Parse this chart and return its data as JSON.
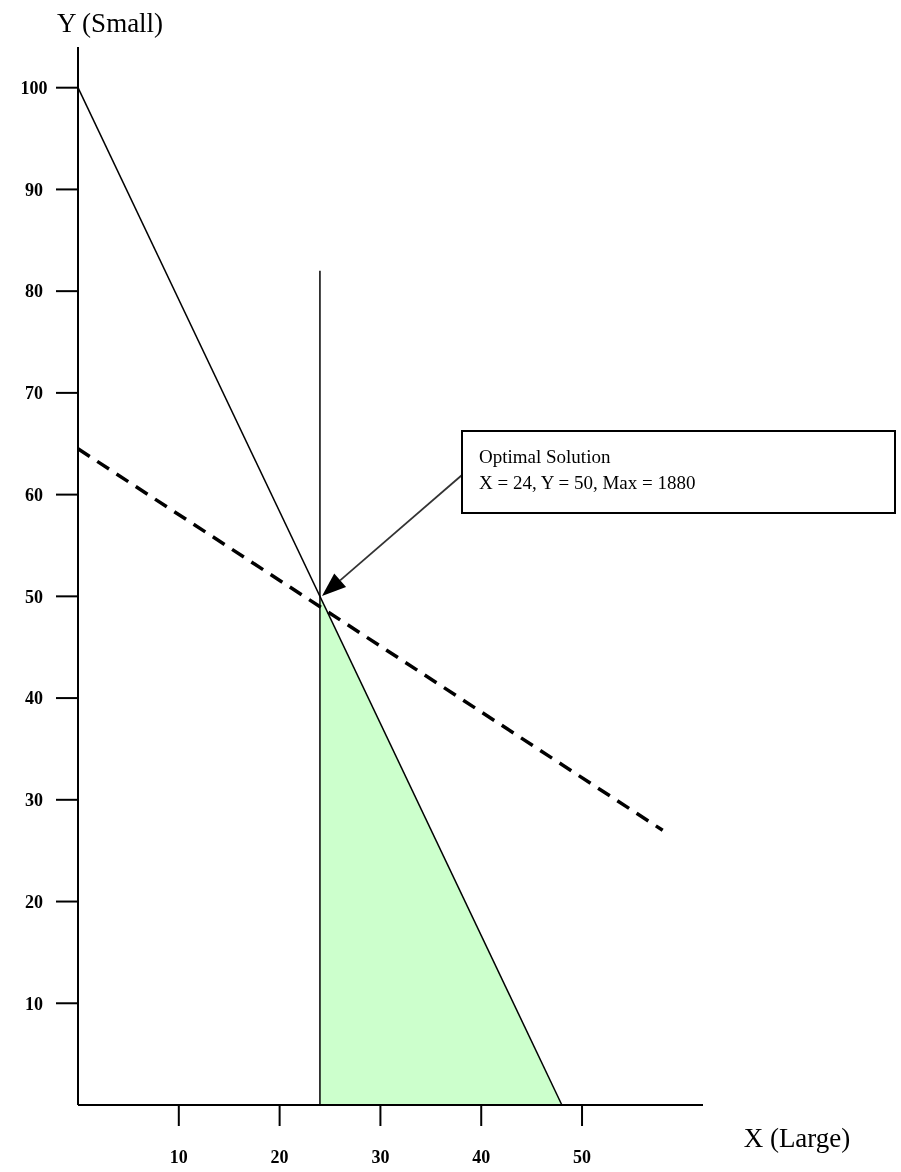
{
  "chart_data": {
    "type": "line",
    "xlabel": "X (Large)",
    "ylabel": "Y (Small)",
    "xlim": [
      0,
      62
    ],
    "ylim": [
      0,
      104
    ],
    "xticks": [
      10,
      20,
      30,
      40,
      50
    ],
    "yticks": [
      10,
      20,
      30,
      40,
      50,
      60,
      70,
      80,
      90,
      100
    ],
    "grid": false,
    "marker": "none",
    "series": [
      {
        "type": "area",
        "color": "#ccffcc",
        "x": [
          24,
          48
        ],
        "values": [
          50,
          0
        ]
      },
      {
        "color": "#000000",
        "x": [
          0,
          48
        ],
        "values": [
          100,
          0
        ],
        "line_style": "solid"
      },
      {
        "color": "#000000",
        "x": [
          24,
          24
        ],
        "values": [
          0,
          82
        ],
        "line_style": "solid"
      },
      {
        "color": "#000000",
        "x": [
          0,
          58
        ],
        "values": [
          64.5,
          27
        ],
        "line_style": "dashed"
      }
    ],
    "annotations": [
      "Optimal Solution\nX = 24, Y = 50, Max = 1880"
    ]
  }
}
